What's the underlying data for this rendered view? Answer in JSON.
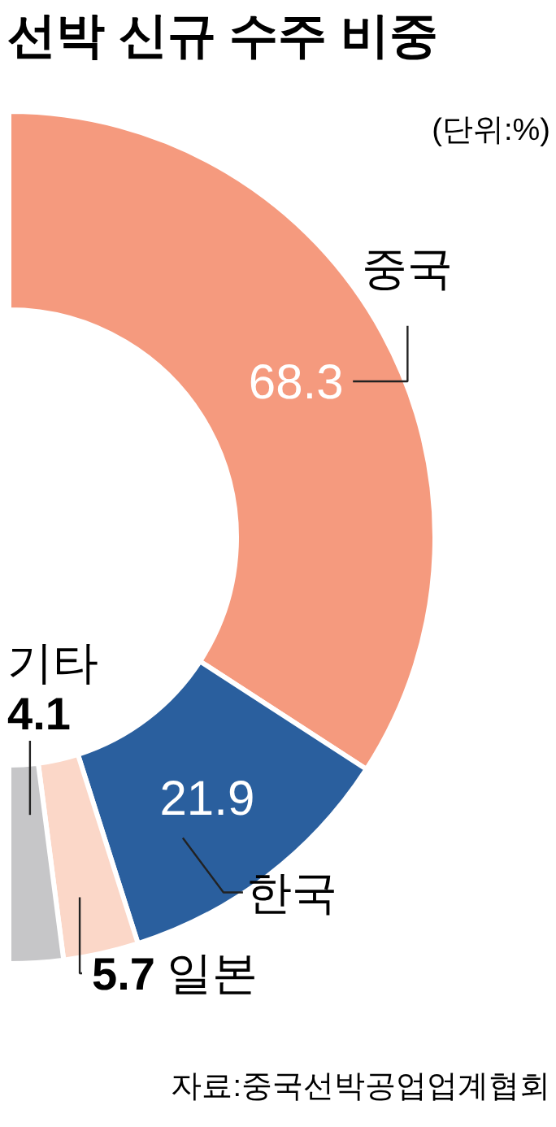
{
  "chart_data": {
    "type": "donut",
    "title": "선박 신규 수주 비중",
    "subtitle": "(단위:%)",
    "categories": [
      "중국",
      "한국",
      "일본",
      "기타"
    ],
    "values": [
      68.3,
      21.9,
      5.7,
      4.1
    ],
    "colors": [
      "#f59a7e",
      "#2a5f9e",
      "#fbd7c8",
      "#c6c6c8"
    ],
    "data_labels": true,
    "annotations": [
      "자료:중국선박공업업계협회"
    ]
  }
}
